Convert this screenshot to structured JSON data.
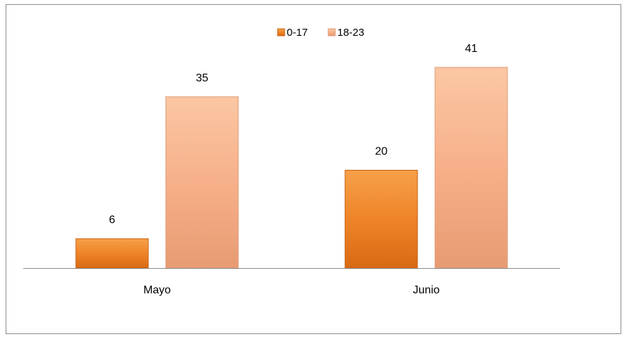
{
  "chart_data": {
    "type": "bar",
    "categories": [
      "Mayo",
      "Junio"
    ],
    "series": [
      {
        "name": "0-17",
        "values": [
          6,
          20
        ],
        "color": "#E87722"
      },
      {
        "name": "18-23",
        "values": [
          35,
          41
        ],
        "color": "#F4A97C"
      }
    ],
    "ylim": [
      0,
      41
    ],
    "legend": "top-center",
    "grid": false,
    "data_labels": true
  }
}
